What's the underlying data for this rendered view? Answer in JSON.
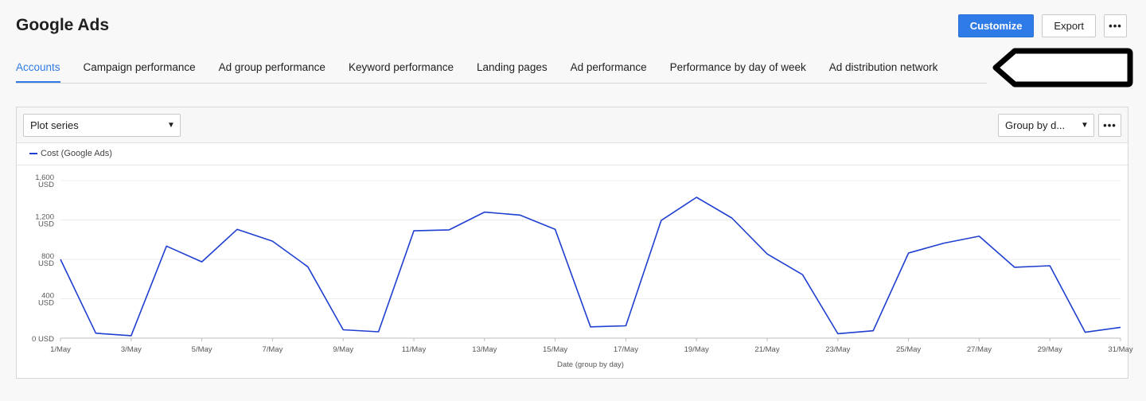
{
  "header": {
    "title": "Google Ads",
    "customize_label": "Customize",
    "export_label": "Export",
    "more_label": "•••"
  },
  "tabs": [
    {
      "label": "Accounts",
      "active": true
    },
    {
      "label": "Campaign performance",
      "active": false
    },
    {
      "label": "Ad group performance",
      "active": false
    },
    {
      "label": "Keyword performance",
      "active": false
    },
    {
      "label": "Landing pages",
      "active": false
    },
    {
      "label": "Ad performance",
      "active": false
    },
    {
      "label": "Performance by day of week",
      "active": false
    },
    {
      "label": "Ad distribution network",
      "active": false
    }
  ],
  "toolbar": {
    "plot_series_label": "Plot series",
    "group_by_label": "Group by d...",
    "more_label": "•••"
  },
  "colors": {
    "accent": "#2f7ce8",
    "series": "#1f3fd1"
  },
  "chart_data": {
    "type": "line",
    "xlabel": "Date (group by day)",
    "ylabel": "",
    "ylim": [
      0,
      1600
    ],
    "y_ticks": [
      {
        "value": 0,
        "label": "0 USD"
      },
      {
        "value": 400,
        "label": "400\nUSD"
      },
      {
        "value": 800,
        "label": "800\nUSD"
      },
      {
        "value": 1200,
        "label": "1,200\nUSD"
      },
      {
        "value": 1600,
        "label": "1,600\nUSD"
      }
    ],
    "x": [
      "1/May",
      "2/May",
      "3/May",
      "4/May",
      "5/May",
      "6/May",
      "7/May",
      "8/May",
      "9/May",
      "10/May",
      "11/May",
      "12/May",
      "13/May",
      "14/May",
      "15/May",
      "16/May",
      "17/May",
      "18/May",
      "19/May",
      "20/May",
      "21/May",
      "22/May",
      "23/May",
      "24/May",
      "25/May",
      "26/May",
      "27/May",
      "28/May",
      "29/May",
      "30/May",
      "31/May"
    ],
    "x_tick_labels": [
      "1/May",
      "3/May",
      "5/May",
      "7/May",
      "9/May",
      "11/May",
      "13/May",
      "15/May",
      "17/May",
      "19/May",
      "21/May",
      "23/May",
      "25/May",
      "27/May",
      "29/May",
      "31/May"
    ],
    "grid": true,
    "legend": "top-left",
    "series": [
      {
        "name": "Cost (Google Ads)",
        "values": [
          800,
          50,
          25,
          935,
          775,
          1105,
          985,
          725,
          85,
          65,
          1090,
          1100,
          1280,
          1250,
          1105,
          115,
          125,
          1195,
          1430,
          1220,
          855,
          645,
          45,
          75,
          865,
          965,
          1035,
          720,
          735,
          60,
          110
        ]
      }
    ]
  }
}
